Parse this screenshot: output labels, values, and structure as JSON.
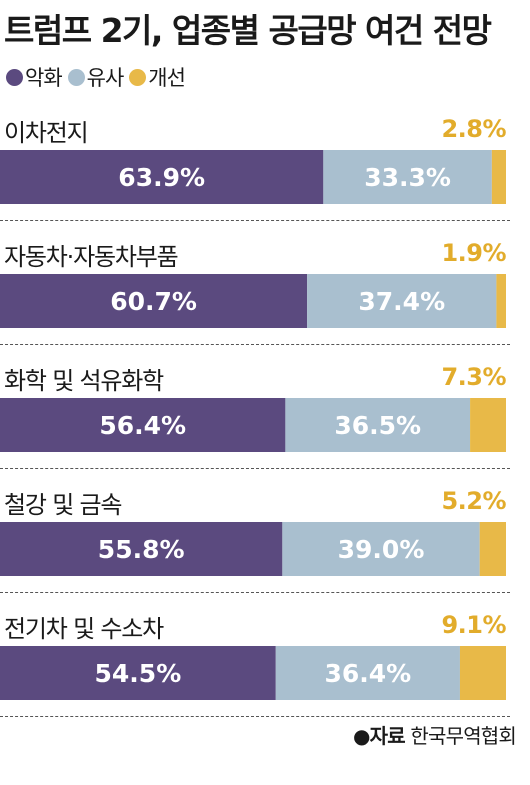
{
  "title": "트럼프 2기, 업종별 공급망 여건 전망",
  "source": {
    "label": "●자료",
    "org": "한국무역협회"
  },
  "colors": {
    "worse": "#5b4a7f",
    "similar": "#a9bfcf",
    "better": "#e8b948",
    "improve_text": "#e2ac2b"
  },
  "chart_data": {
    "type": "bar",
    "orientation": "horizontal-stacked-100",
    "categories": [
      "이차전지",
      "자동차·자동차부품",
      "화학 및 석유화학",
      "철강 및 금속",
      "전기차 및 수소차"
    ],
    "series": [
      {
        "name": "악화",
        "values": [
          63.9,
          60.7,
          56.4,
          55.8,
          54.5
        ]
      },
      {
        "name": "유사",
        "values": [
          33.3,
          37.4,
          36.5,
          39.0,
          36.4
        ]
      },
      {
        "name": "개선",
        "values": [
          2.8,
          1.9,
          7.3,
          5.2,
          9.1
        ]
      }
    ],
    "value_format": "%",
    "xlim": [
      0,
      100
    ],
    "legend_position": "top-left",
    "grid": false
  }
}
